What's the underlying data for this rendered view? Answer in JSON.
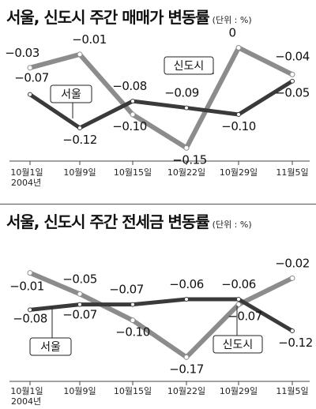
{
  "chart_data": [
    {
      "type": "line",
      "title": "서울, 신도시 주간 매매가 변동률",
      "unit": "(단위 : %)",
      "categories": [
        "10월1일",
        "10월9일",
        "10월15일",
        "10월22일",
        "10월29일",
        "11월5일"
      ],
      "year_label": "2004년",
      "series": [
        {
          "name": "서울",
          "values": [
            -0.07,
            -0.12,
            -0.08,
            -0.09,
            -0.1,
            -0.05
          ],
          "color": "#3a3a3a"
        },
        {
          "name": "신도시",
          "values": [
            -0.03,
            -0.01,
            -0.1,
            -0.15,
            0,
            -0.04
          ],
          "color": "#8c8c8c"
        }
      ],
      "ylim": [
        -0.165,
        0.01
      ],
      "grid": false
    },
    {
      "type": "line",
      "title": "서울, 신도시 주간 전세금 변동률",
      "unit": "(단위 : %)",
      "categories": [
        "10월1일",
        "10월9일",
        "10월15일",
        "10월22일",
        "10월29일",
        "11월5일"
      ],
      "year_label": "2004년",
      "series": [
        {
          "name": "서울",
          "values": [
            -0.08,
            -0.07,
            -0.07,
            -0.06,
            -0.06,
            -0.12
          ],
          "color": "#3a3a3a"
        },
        {
          "name": "신도시",
          "values": [
            -0.01,
            -0.05,
            -0.1,
            -0.17,
            -0.07,
            -0.02
          ],
          "color": "#8c8c8c"
        }
      ],
      "ylim": [
        -0.18,
        0.0
      ],
      "grid": false
    }
  ]
}
